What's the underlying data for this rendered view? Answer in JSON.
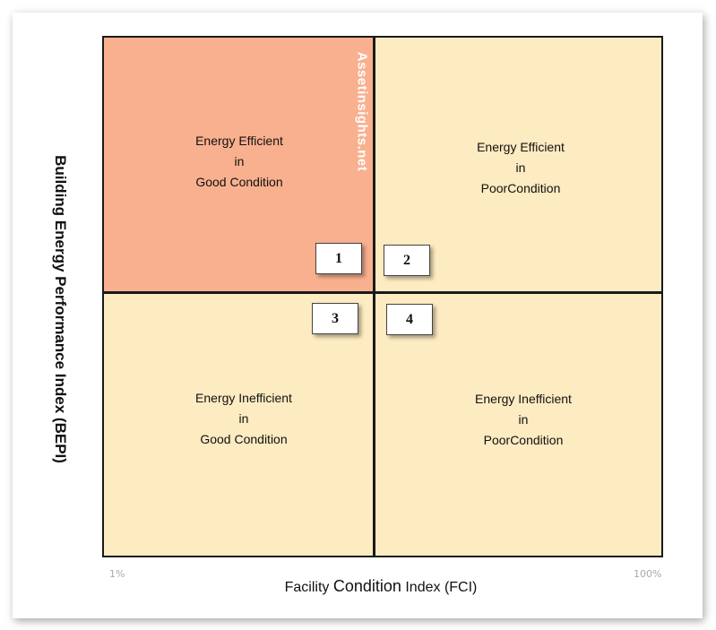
{
  "quadrants": [
    {
      "number": "1",
      "line1": "Energy Efficient",
      "line2": "in",
      "line3": "Good Condition",
      "color": "#f9b08f"
    },
    {
      "number": "2",
      "line1": "Energy Efficient",
      "line2": "in",
      "line3": "PoorCondition",
      "color": "#fdebc1"
    },
    {
      "number": "3",
      "line1": "Energy Inefficient",
      "line2": "in",
      "line3": "Good Condition",
      "color": "#fdebc1"
    },
    {
      "number": "4",
      "line1": "Energy Inefficient",
      "line2": "in",
      "line3": "PoorCondition",
      "color": "#fdebc1"
    }
  ],
  "watermark": "Assetinsights.net",
  "y_axis": {
    "label": "Building Energy Performance Index  (BEPI)"
  },
  "x_axis": {
    "label_part1": "Facility ",
    "label_part2": "Condition",
    "label_part3": " Index (FCI)",
    "min_label": "1%",
    "max_label": "100%"
  }
}
